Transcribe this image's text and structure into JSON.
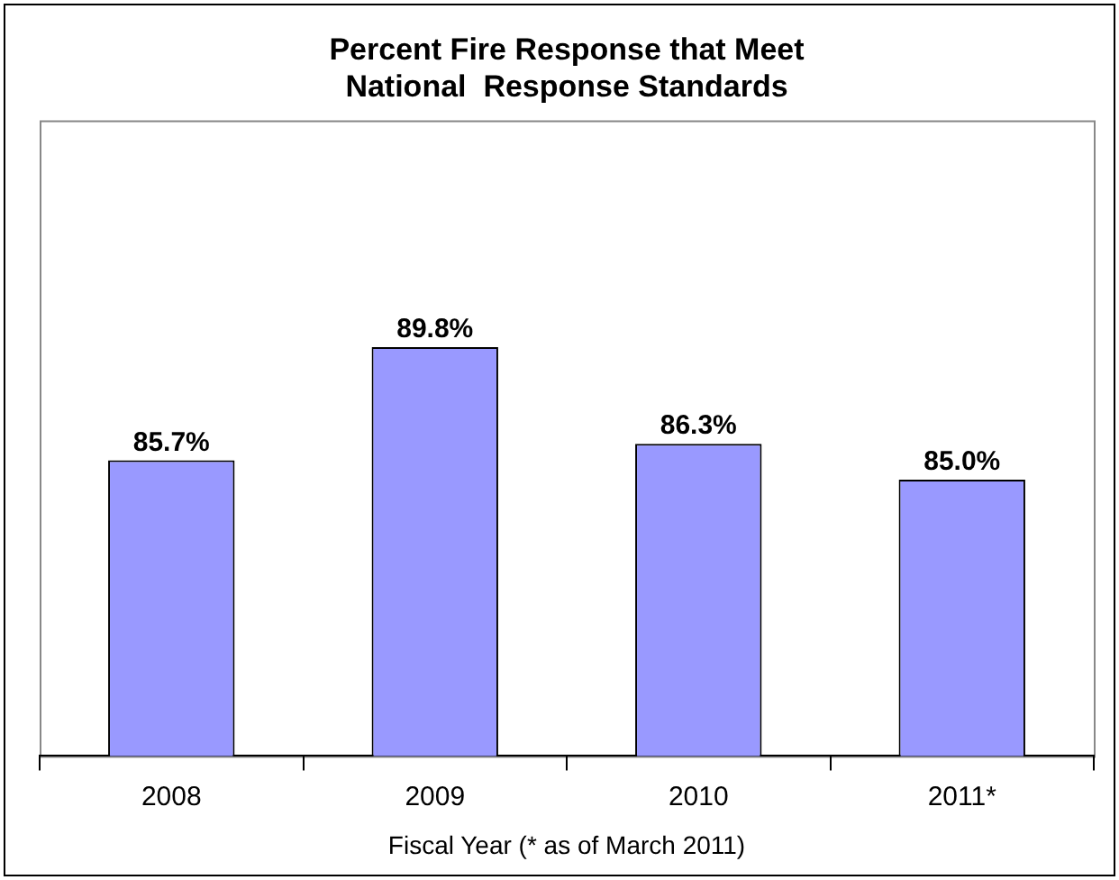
{
  "chart_data": {
    "type": "bar",
    "title": "Percent Fire Response that Meet\nNational  Response Standards",
    "xlabel": "Fiscal Year (* as of March 2011)",
    "categories": [
      "2008",
      "2009",
      "2010",
      "2011*"
    ],
    "values": [
      85.7,
      89.8,
      86.3,
      85.0
    ],
    "value_labels": [
      "85.7%",
      "89.8%",
      "86.3%",
      "85.0%"
    ],
    "color": "#9999ff",
    "ylim": [
      75,
      98
    ],
    "tick_labels": "x",
    "grid": false,
    "legend": false
  }
}
